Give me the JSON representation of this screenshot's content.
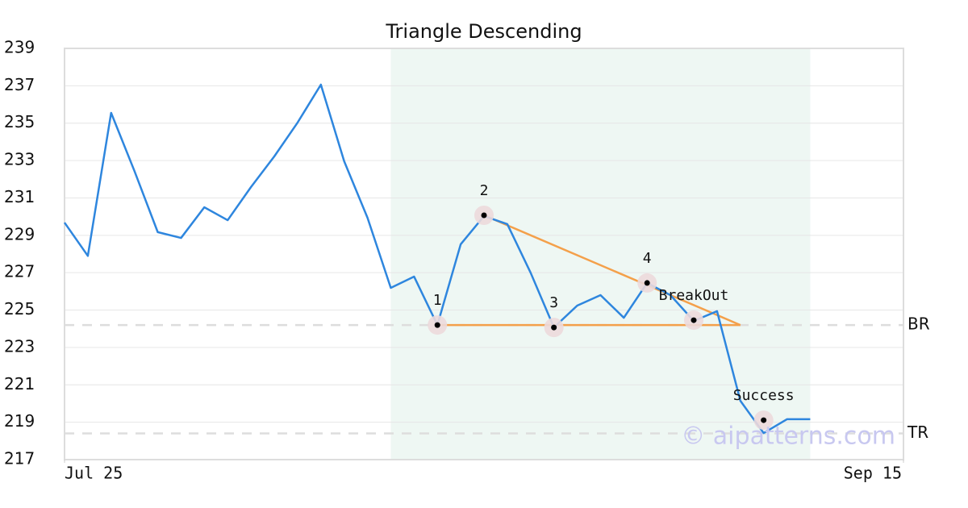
{
  "chart_data": {
    "type": "line",
    "title": "Triangle Descending",
    "x": [
      0,
      1,
      2,
      3,
      4,
      5,
      6,
      7,
      8,
      9,
      10,
      11,
      12,
      13,
      14,
      15,
      16,
      17,
      18,
      19,
      20,
      21,
      22,
      23,
      24,
      25,
      26,
      27,
      28,
      29,
      30,
      31,
      32
    ],
    "values": [
      229.68,
      227.9,
      235.55,
      232.44,
      229.17,
      228.86,
      230.5,
      229.81,
      231.58,
      233.22,
      235.03,
      237.06,
      232.96,
      229.94,
      226.19,
      226.79,
      224.2,
      228.52,
      230.03,
      229.6,
      227.0,
      224.07,
      225.24,
      225.8,
      224.59,
      226.45,
      225.8,
      224.42,
      224.94,
      220.15,
      218.42,
      219.16,
      219.16
    ],
    "color": "#2e86de",
    "xlim": [
      0,
      36
    ],
    "xticks": [
      {
        "value": 0,
        "label": "Jul 25"
      },
      {
        "value": 36,
        "label": "Sep 15"
      }
    ],
    "ylim": [
      217,
      239
    ],
    "yticks": [
      217,
      219,
      221,
      223,
      225,
      227,
      229,
      231,
      233,
      235,
      237,
      239
    ],
    "grid": true,
    "shaded": {
      "x": [
        14,
        32
      ],
      "color": "#eef7f3"
    },
    "trendlines": [
      {
        "x": [
          16,
          29
        ],
        "y": [
          224.2,
          224.2
        ],
        "color": "#f4a04a"
      },
      {
        "x": [
          18,
          29
        ],
        "y": [
          230.07,
          224.2
        ],
        "color": "#f4a04a"
      }
    ],
    "levels": [
      {
        "value": 224.2,
        "label": "BR"
      },
      {
        "value": 218.4,
        "label": "TR"
      }
    ],
    "annotations": [
      {
        "x": 16,
        "y": 224.2,
        "label": "1"
      },
      {
        "x": 18,
        "y": 230.07,
        "label": "2"
      },
      {
        "x": 21,
        "y": 224.07,
        "label": "3"
      },
      {
        "x": 25,
        "y": 226.45,
        "label": "4"
      },
      {
        "x": 27,
        "y": 224.46,
        "label": "BreakOut"
      },
      {
        "x": 30,
        "y": 219.11,
        "label": "Success"
      }
    ],
    "watermark": "© aipatterns.com"
  }
}
